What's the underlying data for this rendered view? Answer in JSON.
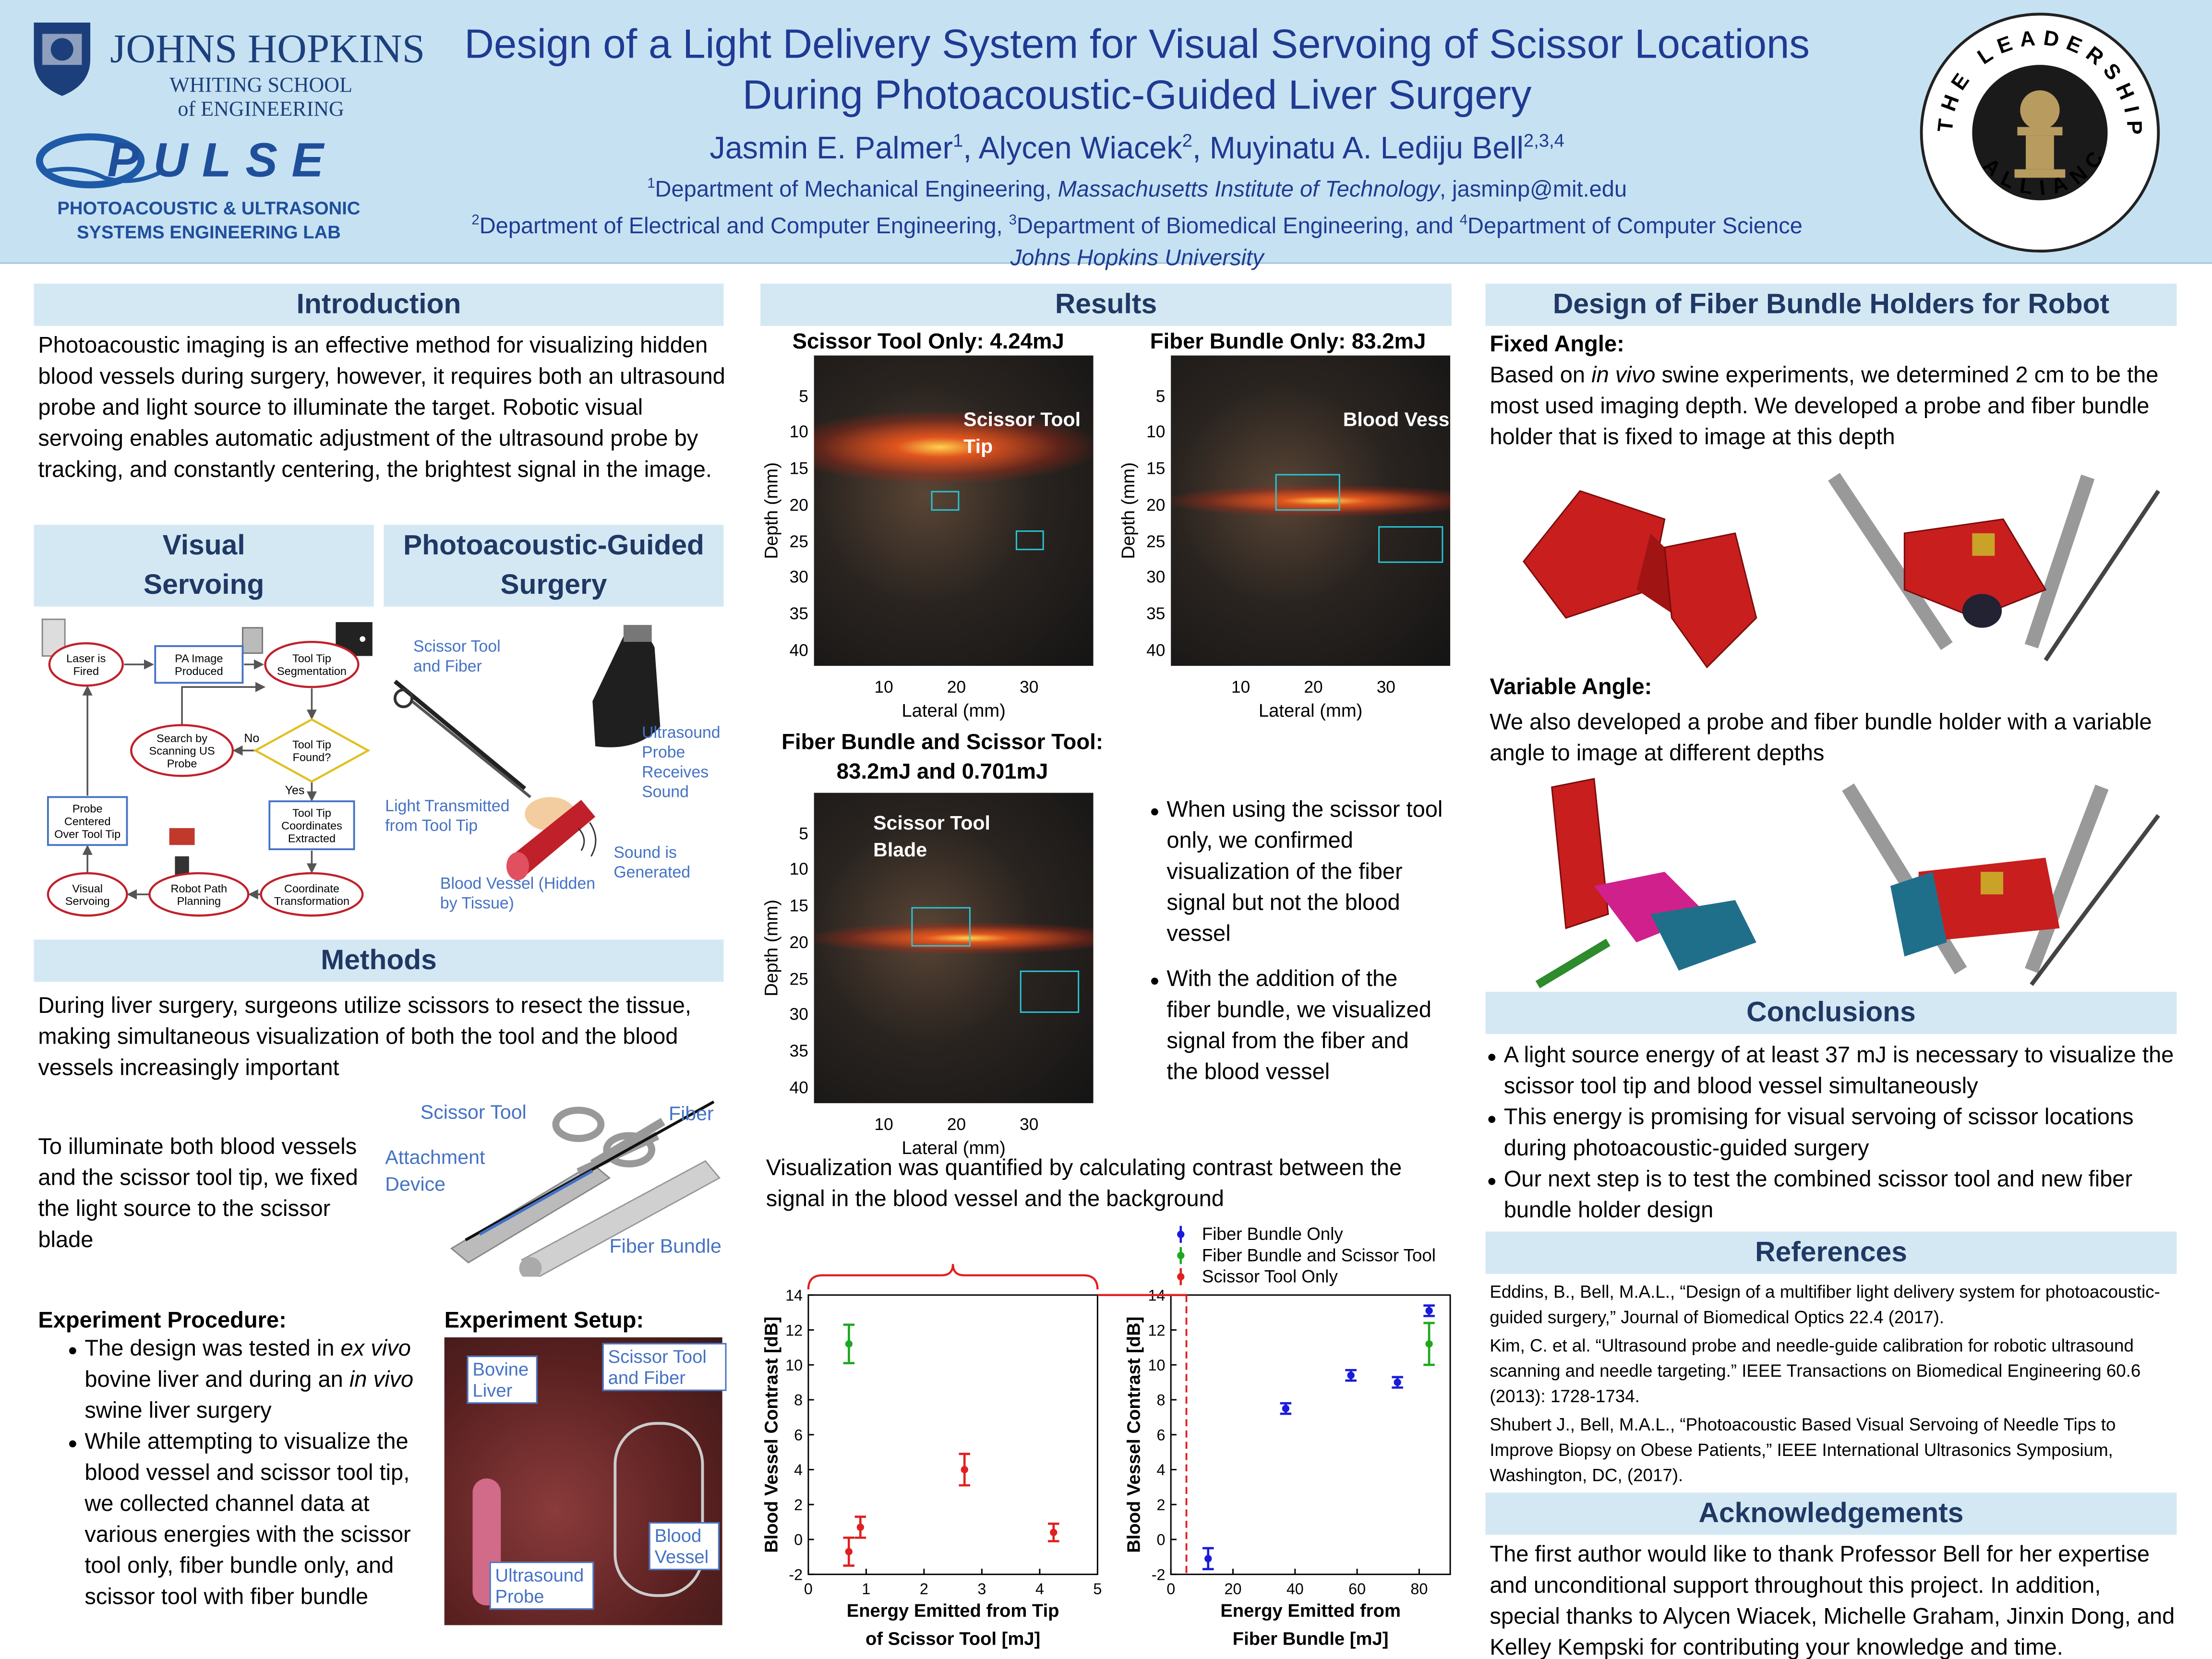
{
  "header": {
    "title": [
      "Design of a Light Delivery System for Visual Servoing of Scissor Locations",
      "During Photoacoustic-Guided Liver Surgery"
    ],
    "authors": [
      {
        "name": "Jasmin E. Palmer",
        "sup": "1"
      },
      {
        "name": ", Alycen Wiacek",
        "sup": "2"
      },
      {
        "name": ", Muyinatu A. Lediju Bell",
        "sup": "2,3,4"
      }
    ],
    "affiliations": [
      [
        "1",
        "Department of Mechanical Engineering, ",
        "Massachusetts Institute of Technology",
        ", jasminp@mit.edu"
      ],
      [
        "2",
        "Department of Electrical and Computer Engineering, ",
        "3",
        "Department of Biomedical Engineering, and ",
        "4",
        "Department of Computer Science"
      ],
      [
        "Johns Hopkins University"
      ]
    ],
    "logos": {
      "jhu": [
        "JOHNS HOPKINS",
        "WHITING SCHOOL",
        "of ENGINEERING"
      ],
      "pulse": [
        "PULSE",
        "PHOTOACOUSTIC & ULTRASONIC",
        "SYSTEMS ENGINEERING LAB"
      ],
      "alliance": [
        "THE LEADERSHIP",
        "ALLIANCE"
      ]
    }
  },
  "introduction": {
    "heading": "Introduction",
    "text": "Photoacoustic imaging is an effective method for visualizing hidden blood vessels during surgery, however, it requires both an ultrasound probe and light source to illuminate the target. Robotic visual servoing enables automatic adjustment of the ultrasound probe by tracking, and constantly centering, the brightest signal in the image."
  },
  "visual_servoing": {
    "heading": "Visual Servoing",
    "nodes": [
      [
        "Laser is",
        "Fired"
      ],
      [
        "PA Image",
        "Produced"
      ],
      [
        "Tool Tip",
        "Segmentation"
      ],
      [
        "Tool Tip",
        "Found?"
      ],
      [
        "Search by",
        "Scanning US",
        "Probe"
      ],
      [
        "Tool Tip",
        "Coordinates",
        "Extracted"
      ],
      [
        "Coordinate",
        "Transformation"
      ],
      [
        "Robot Path",
        "Planning"
      ],
      [
        "Visual",
        "Servoing"
      ],
      [
        "Probe",
        "Centered",
        "Over Tool Tip"
      ]
    ],
    "edge_labels": [
      "No",
      "Yes"
    ]
  },
  "pa_surgery": {
    "heading": "Photoacoustic-Guided Surgery",
    "labels": [
      "Scissor Tool and Fiber",
      "Ultrasound Probe Receives Sound",
      "Light Transmitted from Tool Tip",
      "Sound is Generated",
      "Blood Vessel (Hidden by Tissue)"
    ]
  },
  "methods": {
    "heading": "Methods",
    "text": "During liver surgery, surgeons utilize scissors to resect the tissue, making simultaneous visualization of both the tool and the blood vessels increasingly important",
    "fixation_text": "To illuminate both blood vessels and the scissor tool tip, we fixed the light source to the scissor blade",
    "figure_labels": [
      "Scissor Tool",
      "Fiber",
      "Attachment Device",
      "Fiber Bundle"
    ],
    "procedure": {
      "heading": "Experiment Procedure:",
      "bullets": [
        [
          "The design was tested in ",
          "ex vivo",
          " bovine liver and during an ",
          "in vivo",
          " swine liver surgery"
        ],
        [
          "While attempting to visualize the blood vessel and scissor tool tip, we collected channel data at various energies with the scissor tool only, fiber bundle only, and scissor tool with fiber bundle"
        ]
      ]
    },
    "setup": {
      "heading": "Experiment Setup:",
      "labels": [
        "Bovine Liver",
        "Scissor Tool and Fiber",
        "Blood Vessel",
        "Ultrasound Probe"
      ]
    }
  },
  "results": {
    "heading": "Results",
    "images": [
      {
        "title": "Scissor Tool Only: 4.24mJ",
        "annotation": "Scissor Tool Tip",
        "ylabel": "Depth (mm)",
        "xlabel": "Lateral (mm)",
        "yticks": [
          5,
          10,
          15,
          20,
          25,
          30,
          35,
          40
        ],
        "xticks": [
          10,
          20,
          30
        ]
      },
      {
        "title": "Fiber Bundle Only: 83.2mJ",
        "annotation": "Blood Vessel",
        "ylabel": "Depth (mm)",
        "xlabel": "Lateral (mm)",
        "yticks": [
          5,
          10,
          15,
          20,
          25,
          30,
          35,
          40
        ],
        "xticks": [
          10,
          20,
          30
        ]
      },
      {
        "title": "Fiber Bundle and Scissor Tool: 83.2mJ and 0.701mJ",
        "annotation": "Scissor Tool Blade",
        "ylabel": "Depth (mm)",
        "xlabel": "Lateral (mm)",
        "yticks": [
          5,
          10,
          15,
          20,
          25,
          30,
          35,
          40
        ],
        "xticks": [
          10,
          20,
          30
        ]
      }
    ],
    "bullets": [
      [
        "When using the scissor tool only, we confirmed visualization of the fiber signal but not the blood vessel"
      ],
      [
        "With the addition of the fiber bundle, we visualized signal from the fiber and the blood vessel"
      ]
    ],
    "quantification": "Visualization was quantified by calculating contrast between the signal in the blood vessel and the background"
  },
  "chart_data": [
    {
      "type": "scatter",
      "ylabel": "Blood Vessel Contrast [dB]",
      "xlabel": [
        "Energy Emitted from Tip",
        "of Scissor Tool [mJ]"
      ],
      "xlim": [
        0,
        5
      ],
      "xticks": [
        0,
        1,
        2,
        3,
        4,
        5
      ],
      "ylim": [
        -2,
        14
      ],
      "yticks": [
        -2,
        0,
        2,
        4,
        6,
        8,
        10,
        12,
        14
      ],
      "series": [
        {
          "color": "#1fa81f",
          "x": [
            0.701
          ],
          "values": [
            11.2
          ],
          "errors": [
            1.1
          ]
        },
        {
          "name": "Scissor Tool Only",
          "color": "#e02020",
          "x": [
            0.7,
            0.9,
            2.7,
            4.24
          ],
          "values": [
            -0.7,
            0.7,
            4.0,
            0.4
          ],
          "errors": [
            0.8,
            0.6,
            0.9,
            0.5
          ]
        }
      ]
    },
    {
      "type": "scatter",
      "ylabel": "Blood Vessel Contrast [dB]",
      "xlabel": [
        "Energy Emitted from",
        "Fiber Bundle [mJ]"
      ],
      "xlim": [
        0,
        90
      ],
      "xticks": [
        0,
        20,
        40,
        60,
        80
      ],
      "ylim": [
        -2,
        14
      ],
      "yticks": [
        -2,
        0,
        2,
        4,
        6,
        8,
        10,
        12,
        14
      ],
      "series": [
        {
          "name": "Fiber Bundle Only",
          "color": "#1a1adb",
          "x": [
            12,
            37,
            58,
            73,
            83.2
          ],
          "values": [
            -1.1,
            7.5,
            9.4,
            9.0,
            13.1
          ],
          "errors": [
            0.6,
            0.3,
            0.3,
            0.3,
            0.3
          ]
        },
        {
          "name": "Fiber Bundle and Scissor Tool",
          "color": "#1fa81f",
          "x": [
            83.2
          ],
          "values": [
            11.2
          ],
          "errors": [
            1.2
          ]
        }
      ]
    }
  ],
  "design": {
    "heading": "Design of Fiber Bundle Holders for Robot",
    "fixed": {
      "heading": "Fixed Angle:",
      "text": [
        "Based on ",
        "in vivo",
        " swine experiments, we determined 2 cm to be the most used imaging depth. We developed a probe and fiber bundle holder that is fixed to image at this depth"
      ]
    },
    "variable": {
      "heading": "Variable Angle:",
      "text": [
        "We also developed a probe and fiber bundle holder with a variable angle to image at different depths"
      ]
    }
  },
  "conclusions": {
    "heading": "Conclusions",
    "bullets": [
      [
        "A light source energy of at least 37 mJ is necessary to visualize the scissor tool tip and blood vessel simultaneously"
      ],
      [
        "This energy is promising for visual servoing of scissor locations during photoacoustic-guided surgery"
      ],
      [
        "Our next step is to test the combined scissor tool and new fiber bundle holder design"
      ]
    ]
  },
  "references": {
    "heading": "References",
    "items": [
      "Eddins, B., Bell, M.A.L., “Design of a multifiber light delivery system for photoacoustic-guided surgery,” Journal of Biomedical Optics 22.4 (2017).",
      "Kim, C. et al. “Ultrasound probe and needle-guide calibration for robotic ultrasound scanning and needle targeting.” IEEE Transactions on Biomedical Engineering 60.6 (2013): 1728-1734.",
      "Shubert J., Bell, M.A.L., “Photoacoustic Based Visual Servoing of Needle Tips to Improve Biopsy on Obese Patients,” IEEE International Ultrasonics Symposium, Washington, DC, (2017)."
    ]
  },
  "acknowledgements": {
    "heading": "Acknowledgements",
    "text": "The first author would like to thank Professor Bell for her expertise and unconditional support throughout this project. In addition, special thanks to Alycen Wiacek, Michelle Graham, Jinxin Dong, and Kelley Kempski for contributing your knowledge and time."
  }
}
